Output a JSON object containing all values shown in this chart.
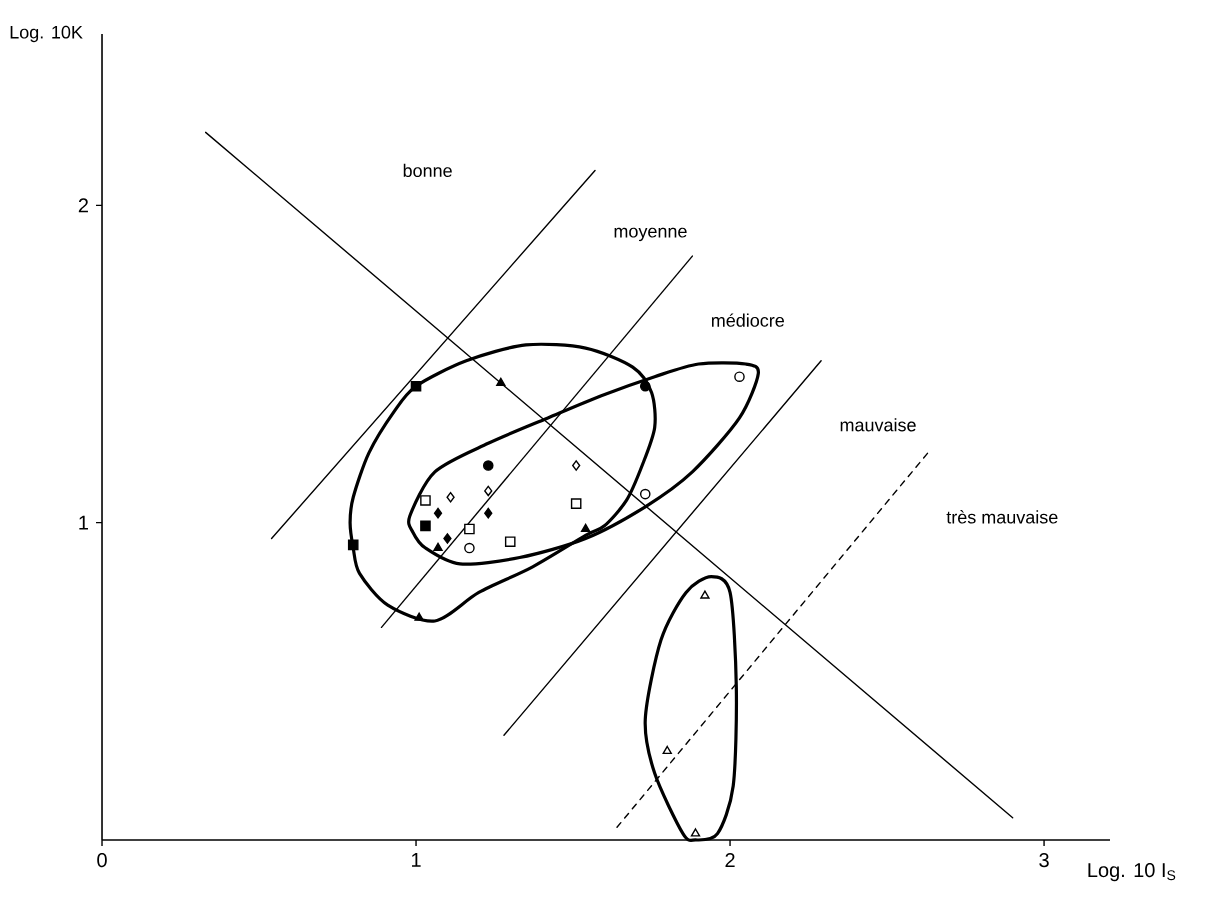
{
  "chart_data": {
    "type": "scatter",
    "xlabel": "Log. 10 I$_{S}$",
    "ylabel": "Log. 10K",
    "xlim": [
      0,
      3.21
    ],
    "ylim": [
      0,
      2.54
    ],
    "xticks": [
      0,
      1,
      2,
      3
    ],
    "yticks": [
      1,
      2
    ],
    "annotations": [
      "bonne",
      "moyenne",
      "médiocre",
      "mauvaise",
      "très mauvaise"
    ],
    "series": [
      {
        "marker": "square",
        "color": "#000000",
        "x": [
          1.0,
          0.8,
          1.03
        ],
        "values": [
          1.43,
          0.93,
          0.99
        ]
      },
      {
        "marker": "triangle",
        "color": "#000000",
        "x": [
          1.27,
          1.01,
          1.54,
          1.07
        ],
        "values": [
          1.44,
          0.7,
          0.98,
          0.92
        ]
      },
      {
        "marker": "circle",
        "color": "#000000",
        "x": [
          1.23,
          1.73
        ],
        "values": [
          1.18,
          1.43
        ]
      },
      {
        "marker": "diamond",
        "color": "#000000",
        "x": [
          1.07,
          1.1,
          1.23
        ],
        "values": [
          1.03,
          0.95,
          1.03
        ]
      },
      {
        "marker": "square",
        "color": "#ffffff",
        "x": [
          1.03,
          1.17,
          1.3,
          1.51
        ],
        "values": [
          1.07,
          0.98,
          0.94,
          1.06
        ]
      },
      {
        "marker": "diamond",
        "color": "#ffffff",
        "x": [
          1.11,
          1.23,
          1.51
        ],
        "values": [
          1.08,
          1.1,
          1.18
        ]
      },
      {
        "marker": "circle",
        "color": "#ffffff",
        "x": [
          1.17,
          1.73,
          2.03
        ],
        "values": [
          0.92,
          1.09,
          1.46
        ]
      },
      {
        "marker": "triangle",
        "color": "#ffffff",
        "x": [
          1.92,
          1.8,
          1.89
        ],
        "values": [
          0.77,
          0.28,
          0.02
        ]
      },
      {
        "type": "line",
        "line_style": "solid",
        "color": "#000000",
        "x": [
          0.33,
          2.9
        ],
        "values": [
          2.23,
          0.07
        ]
      },
      {
        "type": "line",
        "line_style": "solid",
        "color": "#000000",
        "x": [
          0.54,
          1.57
        ],
        "values": [
          0.95,
          2.11
        ]
      },
      {
        "type": "line",
        "line_style": "solid",
        "color": "#000000",
        "x": [
          0.89,
          1.88
        ],
        "values": [
          0.67,
          1.84
        ]
      },
      {
        "type": "line",
        "line_style": "solid",
        "color": "#000000",
        "x": [
          1.28,
          2.29
        ],
        "values": [
          0.33,
          1.51
        ]
      },
      {
        "type": "line",
        "line_style": "dashed",
        "color": "#000000",
        "x": [
          1.64,
          2.63
        ],
        "values": [
          0.04,
          1.22
        ]
      }
    ]
  }
}
